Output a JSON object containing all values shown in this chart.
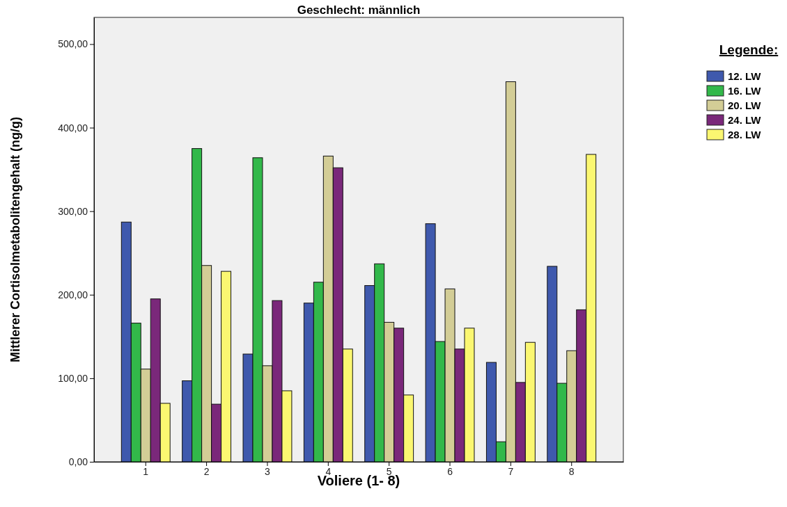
{
  "chart_data": {
    "type": "bar",
    "title": "Geschlecht: männlich",
    "xlabel": "Voliere (1- 8)",
    "ylabel": "Mittlerer Cortisolmetabolitengehalt (ng/g)",
    "legend_title": "Legende:",
    "legend": "right",
    "grid": false,
    "categories": [
      "1",
      "2",
      "3",
      "4",
      "5",
      "6",
      "7",
      "8"
    ],
    "ylim": [
      0,
      532
    ],
    "yticks": [
      {
        "value": 0,
        "label": "0,00"
      },
      {
        "value": 100,
        "label": "100,00"
      },
      {
        "value": 200,
        "label": "200,00"
      },
      {
        "value": 300,
        "label": "300,00"
      },
      {
        "value": 400,
        "label": "400,00"
      },
      {
        "value": 500,
        "label": "500,00"
      }
    ],
    "series": [
      {
        "name": "12. LW",
        "color": "#3f59ad",
        "values": [
          287,
          97,
          129,
          190,
          211,
          285,
          119,
          234
        ]
      },
      {
        "name": "16. LW",
        "color": "#32b84a",
        "values": [
          166,
          375,
          364,
          215,
          237,
          144,
          24,
          94
        ]
      },
      {
        "name": "20. LW",
        "color": "#d3cd96",
        "values": [
          111,
          235,
          115,
          366,
          167,
          207,
          455,
          133
        ]
      },
      {
        "name": "24. LW",
        "color": "#7a287a",
        "values": [
          195,
          69,
          193,
          352,
          160,
          135,
          95,
          182
        ]
      },
      {
        "name": "28. LW",
        "color": "#fbf771",
        "values": [
          70,
          228,
          85,
          135,
          80,
          160,
          143,
          368
        ]
      }
    ]
  }
}
